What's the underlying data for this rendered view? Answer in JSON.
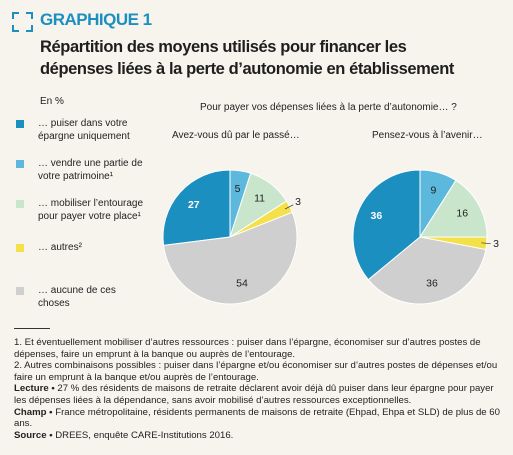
{
  "graphic_label": "GRAPHIQUE 1",
  "title": "Répartition des moyens utilisés pour financer les dépenses liées à la perte d’autonomie en établissement",
  "question": "Pour payer vos dépenses liées à la perte d’autonomie… ?",
  "legend": {
    "unit": "En %",
    "labels": [
      "… puiser dans votre épargne uniquement",
      "… vendre une partie de votre patrimoine¹",
      "… mobiliser l’entourage pour payer votre place¹",
      "… autres²",
      "… aucune de ces choses"
    ],
    "colors": [
      "#1b8fc0",
      "#5cb9dd",
      "#c9e5cb",
      "#f4e14a",
      "#cfcfcf"
    ]
  },
  "chart_data": [
    {
      "type": "pie",
      "title": "Avez-vous dû par le passé…",
      "values": [
        27,
        5,
        11,
        3,
        54
      ]
    },
    {
      "type": "pie",
      "title": "Pensez-vous à l’avenir…",
      "values": [
        36,
        9,
        16,
        3,
        36
      ]
    }
  ],
  "footnotes": [
    "1. Et éventuellement mobiliser d’autres ressources : puiser dans l’épargne, économiser sur d’autres postes de dépenses, faire un emprunt à la banque ou auprès de l’entourage.",
    "2. Autres combinaisons possibles : puiser dans l’épargne et/ou économiser sur d’autres postes de dépenses et/ou faire un emprunt à la banque et/ou auprès de l’entourage."
  ],
  "notes": [
    {
      "label": "Lecture •",
      "text": "27 % des résidents de maisons de retraite déclarent avoir déjà dû puiser dans leur épargne pour payer les dépenses liées à la dépendance, sans avoir mobilisé d’autres ressources exceptionnelles."
    },
    {
      "label": "Champ •",
      "text": "France métropolitaine, résidents permanents de maisons de retraite (Ehpad, Ehpa et SLD) de plus de 60 ans."
    },
    {
      "label": "Source •",
      "text": "DREES, enquête CARE-Institutions 2016."
    }
  ]
}
